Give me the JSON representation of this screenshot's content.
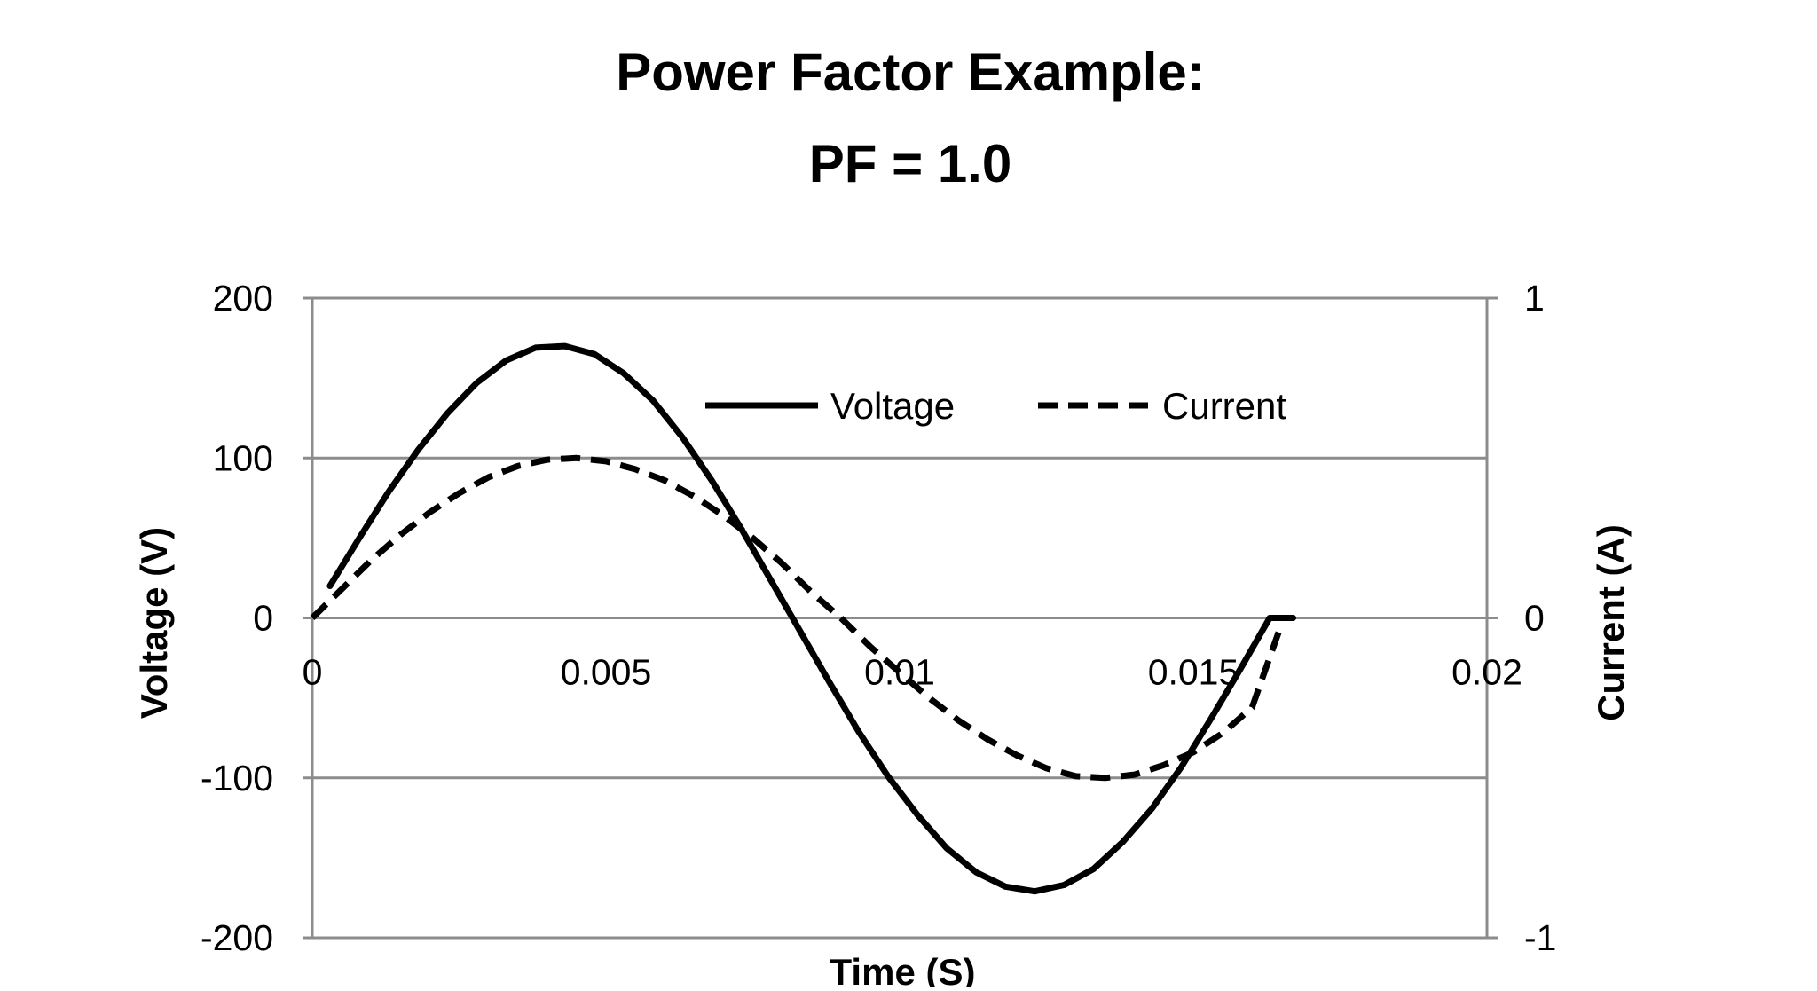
{
  "chart_data": {
    "type": "line",
    "title": "Power Factor Example:",
    "subtitle": "PF = 1.0",
    "xlabel": "Time (S)",
    "ylabel": "Voltage (V)",
    "y2label": "Current (A)",
    "xlim": [
      0,
      0.02
    ],
    "ylim": [
      -200,
      200
    ],
    "y2lim": [
      -1,
      1
    ],
    "x_ticks": [
      0,
      0.005,
      0.01,
      0.015,
      0.02
    ],
    "x_tick_labels": [
      "0",
      "0.005",
      "0.01",
      "0.015",
      "0.02"
    ],
    "y_ticks": [
      -200,
      -100,
      0,
      100,
      200
    ],
    "y_tick_labels": [
      "-200",
      "-100",
      "0",
      "100",
      "200"
    ],
    "y2_ticks": [
      -1,
      0,
      1
    ],
    "y2_tick_labels": [
      "-1",
      "0",
      "1"
    ],
    "grid": true,
    "legend_position": "top-right",
    "series": [
      {
        "name": "Voltage",
        "axis": "left",
        "style": "solid",
        "color": "#000000",
        "x": [
          0.0003,
          0.0008,
          0.0013,
          0.0018,
          0.0023,
          0.0028,
          0.0033,
          0.0038,
          0.0043,
          0.0048,
          0.0053,
          0.0058,
          0.0063,
          0.0068,
          0.0073,
          0.0078,
          0.0083,
          0.0088,
          0.0093,
          0.0098,
          0.0103,
          0.0108,
          0.0113,
          0.0118,
          0.0123,
          0.0128,
          0.0133,
          0.0138,
          0.0143,
          0.0148,
          0.0153,
          0.0158,
          0.0163,
          0.0167
        ],
        "y": [
          20,
          50,
          79,
          105,
          128,
          147,
          161,
          169,
          170,
          165,
          153,
          136,
          113,
          86,
          56,
          24,
          -8,
          -40,
          -71,
          -99,
          -123,
          -144,
          -159,
          -168,
          -171,
          -167,
          -157,
          -140,
          -119,
          -93,
          -63,
          -32,
          0,
          0
        ]
      },
      {
        "name": "Current",
        "axis": "right",
        "style": "dashed",
        "color": "#000000",
        "x": [
          0,
          0.0005,
          0.001,
          0.0015,
          0.002,
          0.0025,
          0.003,
          0.0035,
          0.004,
          0.0045,
          0.005,
          0.0055,
          0.006,
          0.0065,
          0.007,
          0.0075,
          0.008,
          0.0085,
          0.009,
          0.0095,
          0.01,
          0.0105,
          0.011,
          0.0115,
          0.012,
          0.0125,
          0.013,
          0.0135,
          0.014,
          0.0145,
          0.015,
          0.0155,
          0.016,
          0.0165
        ],
        "y": [
          0,
          0.09,
          0.18,
          0.26,
          0.33,
          0.39,
          0.44,
          0.475,
          0.495,
          0.5,
          0.49,
          0.465,
          0.43,
          0.38,
          0.32,
          0.25,
          0.17,
          0.08,
          0,
          -0.09,
          -0.17,
          -0.25,
          -0.32,
          -0.38,
          -0.43,
          -0.47,
          -0.495,
          -0.5,
          -0.49,
          -0.46,
          -0.42,
          -0.36,
          -0.28,
          -0.02
        ]
      }
    ]
  }
}
